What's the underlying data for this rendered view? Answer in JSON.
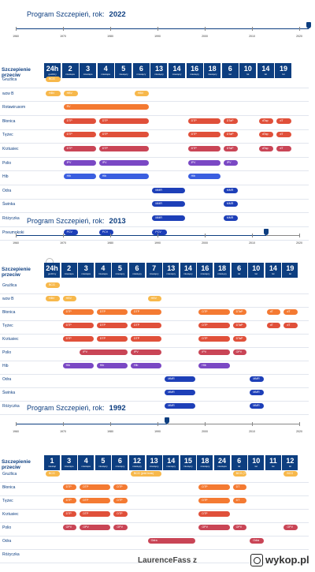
{
  "panels": [
    {
      "title": "Program Szczepień, rok:",
      "year": "2022",
      "timeline": {
        "ticks": [
          "1960",
          "1970",
          "1980",
          "1990",
          "2000",
          "2010",
          "2020"
        ],
        "marker_year": 2022
      },
      "header_title": "Szczepienie przeciw",
      "ages": [
        {
          "n": "24h",
          "u": "godziny"
        },
        {
          "n": "2",
          "u": "miesiące"
        },
        {
          "n": "3",
          "u": "miesiące"
        },
        {
          "n": "4",
          "u": "miesiące"
        },
        {
          "n": "5",
          "u": "miesięcy"
        },
        {
          "n": "6",
          "u": "miesięcy"
        },
        {
          "n": "13",
          "u": "miesięcy"
        },
        {
          "n": "14",
          "u": "miesięcy"
        },
        {
          "n": "16",
          "u": "miesięcy"
        },
        {
          "n": "18",
          "u": "miesięcy"
        },
        {
          "n": "6",
          "u": "lat"
        },
        {
          "n": "10",
          "u": "lat"
        },
        {
          "n": "14",
          "u": "lat"
        },
        {
          "n": "19",
          "u": "lat"
        }
      ],
      "rows": [
        {
          "label": "Gruźlica",
          "pills": [
            {
              "t": "BCG",
              "c": "yellow",
              "s": 0,
              "e": 1
            }
          ]
        },
        {
          "label": "wzw B",
          "pills": [
            {
              "t": "HBV",
              "c": "yellow",
              "s": 0,
              "e": 1
            },
            {
              "t": "HBV",
              "c": "yellow",
              "s": 1,
              "e": 2
            },
            {
              "t": "HBV",
              "c": "yellow",
              "s": 5,
              "e": 6
            }
          ]
        },
        {
          "label": "Rotawirusom",
          "pills": [
            {
              "t": "RV",
              "c": "orange",
              "s": 1,
              "e": 6
            }
          ]
        },
        {
          "label": "Błonica",
          "pills": [
            {
              "t": "DTP",
              "c": "red",
              "s": 1,
              "e": 3
            },
            {
              "t": "DTP",
              "c": "red",
              "s": 3,
              "e": 6
            },
            {
              "t": "DTP",
              "c": "red",
              "s": 8,
              "e": 10
            },
            {
              "t": "DTaP",
              "c": "red",
              "s": 10,
              "e": 11
            },
            {
              "t": "dTap",
              "c": "red",
              "s": 12,
              "e": 13
            },
            {
              "t": "dT",
              "c": "red",
              "s": 13,
              "e": 14
            }
          ]
        },
        {
          "label": "Tężec",
          "pills": [
            {
              "t": "DTP",
              "c": "red",
              "s": 1,
              "e": 3
            },
            {
              "t": "DTP",
              "c": "red",
              "s": 3,
              "e": 6
            },
            {
              "t": "DTP",
              "c": "red",
              "s": 8,
              "e": 10
            },
            {
              "t": "DTaP",
              "c": "red",
              "s": 10,
              "e": 11
            },
            {
              "t": "dTap",
              "c": "red",
              "s": 12,
              "e": 13
            },
            {
              "t": "dT",
              "c": "red",
              "s": 13,
              "e": 14
            }
          ]
        },
        {
          "label": "Krztusiec",
          "pills": [
            {
              "t": "DTP",
              "c": "crimson",
              "s": 1,
              "e": 3
            },
            {
              "t": "DTP",
              "c": "crimson",
              "s": 3,
              "e": 6
            },
            {
              "t": "DTP",
              "c": "crimson",
              "s": 8,
              "e": 10
            },
            {
              "t": "DTaP",
              "c": "crimson",
              "s": 10,
              "e": 11
            },
            {
              "t": "dTap",
              "c": "crimson",
              "s": 12,
              "e": 13
            },
            {
              "t": "dT",
              "c": "crimson",
              "s": 13,
              "e": 14
            }
          ]
        },
        {
          "label": "Polio",
          "pills": [
            {
              "t": "IPV",
              "c": "purple",
              "s": 1,
              "e": 3
            },
            {
              "t": "IPV",
              "c": "purple",
              "s": 3,
              "e": 6
            },
            {
              "t": "IPV",
              "c": "purple",
              "s": 8,
              "e": 10
            },
            {
              "t": "IPV",
              "c": "purple",
              "s": 10,
              "e": 11
            }
          ]
        },
        {
          "label": "Hib",
          "pills": [
            {
              "t": "Hib",
              "c": "blue",
              "s": 1,
              "e": 3
            },
            {
              "t": "Hib",
              "c": "blue",
              "s": 3,
              "e": 6
            },
            {
              "t": "Hib",
              "c": "blue",
              "s": 8,
              "e": 10
            }
          ]
        },
        {
          "label": "Odra",
          "pills": [
            {
              "t": "MMR",
              "c": "navy",
              "s": 6,
              "e": 8
            },
            {
              "t": "MMR",
              "c": "navy",
              "s": 10,
              "e": 11
            }
          ]
        },
        {
          "label": "Świnka",
          "pills": [
            {
              "t": "MMR",
              "c": "navy",
              "s": 6,
              "e": 8
            },
            {
              "t": "MMR",
              "c": "navy",
              "s": 10,
              "e": 11
            }
          ]
        },
        {
          "label": "Różyczka",
          "pills": [
            {
              "t": "MMR",
              "c": "navy",
              "s": 6,
              "e": 8
            },
            {
              "t": "MMR",
              "c": "navy",
              "s": 10,
              "e": 11
            }
          ]
        },
        {
          "label": "Pneumokoki",
          "pills": [
            {
              "t": "PCV",
              "c": "navy",
              "s": 1,
              "e": 2
            },
            {
              "t": "PCV",
              "c": "navy",
              "s": 3,
              "e": 4
            },
            {
              "t": "PCV",
              "c": "navy",
              "s": 6,
              "e": 7
            }
          ]
        }
      ]
    },
    {
      "title": "Program Szczepień, rok:",
      "year": "2013",
      "timeline": {
        "ticks": [
          "1960",
          "1970",
          "1980",
          "1990",
          "2000",
          "2010",
          "2020"
        ],
        "marker_year": 2013
      },
      "header_title": "Szczepienie przeciw",
      "ages": [
        {
          "n": "24h",
          "u": "godziny"
        },
        {
          "n": "2",
          "u": "miesiące"
        },
        {
          "n": "3",
          "u": "miesiące"
        },
        {
          "n": "4",
          "u": "miesiące"
        },
        {
          "n": "5",
          "u": "miesięcy"
        },
        {
          "n": "6",
          "u": "miesięcy"
        },
        {
          "n": "7",
          "u": "miesięcy"
        },
        {
          "n": "13",
          "u": "miesięcy"
        },
        {
          "n": "14",
          "u": "miesięcy"
        },
        {
          "n": "16",
          "u": "miesięcy"
        },
        {
          "n": "18",
          "u": "miesięcy"
        },
        {
          "n": "6",
          "u": "lat"
        },
        {
          "n": "10",
          "u": "lat"
        },
        {
          "n": "14",
          "u": "lat"
        },
        {
          "n": "19",
          "u": "lat"
        }
      ],
      "rows": [
        {
          "label": "Gruźlica",
          "pills": [
            {
              "t": "BCG",
              "c": "yellow",
              "s": 0,
              "e": 1
            }
          ]
        },
        {
          "label": "wzw B",
          "pills": [
            {
              "t": "HBV",
              "c": "yellow",
              "s": 0,
              "e": 1
            },
            {
              "t": "HBV",
              "c": "yellow",
              "s": 1,
              "e": 2
            },
            {
              "t": "HBV",
              "c": "yellow",
              "s": 6,
              "e": 7
            }
          ]
        },
        {
          "label": "Błonica",
          "pills": [
            {
              "t": "DTP",
              "c": "orange",
              "s": 1,
              "e": 3
            },
            {
              "t": "DTP",
              "c": "orange",
              "s": 3,
              "e": 5
            },
            {
              "t": "DTP",
              "c": "orange",
              "s": 5,
              "e": 7
            },
            {
              "t": "DTP",
              "c": "orange",
              "s": 9,
              "e": 11
            },
            {
              "t": "DTaP",
              "c": "orange",
              "s": 11,
              "e": 12
            },
            {
              "t": "dT",
              "c": "orange",
              "s": 13,
              "e": 14
            },
            {
              "t": "dT",
              "c": "orange",
              "s": 14,
              "e": 15
            }
          ]
        },
        {
          "label": "Tężec",
          "pills": [
            {
              "t": "DTP",
              "c": "red",
              "s": 1,
              "e": 3
            },
            {
              "t": "DTP",
              "c": "red",
              "s": 3,
              "e": 5
            },
            {
              "t": "DTP",
              "c": "red",
              "s": 5,
              "e": 7
            },
            {
              "t": "DTP",
              "c": "red",
              "s": 9,
              "e": 11
            },
            {
              "t": "DTaP",
              "c": "red",
              "s": 11,
              "e": 12
            },
            {
              "t": "dT",
              "c": "red",
              "s": 13,
              "e": 14
            },
            {
              "t": "dT",
              "c": "red",
              "s": 14,
              "e": 15
            }
          ]
        },
        {
          "label": "Krztusiec",
          "pills": [
            {
              "t": "DTP",
              "c": "red",
              "s": 1,
              "e": 3
            },
            {
              "t": "DTP",
              "c": "red",
              "s": 3,
              "e": 5
            },
            {
              "t": "DTP",
              "c": "red",
              "s": 5,
              "e": 7
            },
            {
              "t": "DTP",
              "c": "red",
              "s": 9,
              "e": 11
            },
            {
              "t": "DTaP",
              "c": "red",
              "s": 11,
              "e": 12
            }
          ]
        },
        {
          "label": "Polio",
          "pills": [
            {
              "t": "IPV",
              "c": "crimson",
              "s": 2,
              "e": 5
            },
            {
              "t": "IPV",
              "c": "crimson",
              "s": 5,
              "e": 7
            },
            {
              "t": "IPV",
              "c": "crimson",
              "s": 9,
              "e": 11
            },
            {
              "t": "OPV",
              "c": "crimson",
              "s": 11,
              "e": 12
            }
          ]
        },
        {
          "label": "Hib",
          "pills": [
            {
              "t": "Hib",
              "c": "purple",
              "s": 1,
              "e": 3
            },
            {
              "t": "Hib",
              "c": "purple",
              "s": 3,
              "e": 5
            },
            {
              "t": "Hib",
              "c": "purple",
              "s": 5,
              "e": 7
            },
            {
              "t": "Hib",
              "c": "purple",
              "s": 9,
              "e": 11
            }
          ]
        },
        {
          "label": "Odra",
          "pills": [
            {
              "t": "MMR",
              "c": "navy",
              "s": 7,
              "e": 9
            },
            {
              "t": "MMR",
              "c": "navy",
              "s": 12,
              "e": 13
            }
          ]
        },
        {
          "label": "Świnka",
          "pills": [
            {
              "t": "MMR",
              "c": "navy",
              "s": 7,
              "e": 9
            },
            {
              "t": "MMR",
              "c": "navy",
              "s": 12,
              "e": 13
            }
          ]
        },
        {
          "label": "Różyczka",
          "pills": [
            {
              "t": "MMR",
              "c": "navy",
              "s": 7,
              "e": 9
            },
            {
              "t": "MMR",
              "c": "navy",
              "s": 12,
              "e": 13
            }
          ]
        }
      ]
    },
    {
      "title": "Program Szczepień, rok:",
      "year": "1992",
      "timeline": {
        "ticks": [
          "1960",
          "1970",
          "1980",
          "1990",
          "2000",
          "2010",
          "2020"
        ],
        "marker_year": 1992
      },
      "header_title": "Szczepienie przeciw",
      "ages": [
        {
          "n": "1",
          "u": "miesiąc"
        },
        {
          "n": "3",
          "u": "miesiące"
        },
        {
          "n": "4",
          "u": "miesiące"
        },
        {
          "n": "5",
          "u": "miesięcy"
        },
        {
          "n": "6",
          "u": "miesięcy"
        },
        {
          "n": "12",
          "u": "miesięcy"
        },
        {
          "n": "13",
          "u": "miesięcy"
        },
        {
          "n": "14",
          "u": "miesięcy"
        },
        {
          "n": "15",
          "u": "miesięcy"
        },
        {
          "n": "18",
          "u": "miesięcy"
        },
        {
          "n": "24",
          "u": "miesiące"
        },
        {
          "n": "6",
          "u": "lat"
        },
        {
          "n": "10",
          "u": "lat"
        },
        {
          "n": "11",
          "u": "lat"
        },
        {
          "n": "12",
          "u": "lat"
        }
      ],
      "rows": [
        {
          "label": "Gruźlica",
          "pills": [
            {
              "t": "BCG",
              "c": "yellow",
              "s": 0,
              "e": 1
            },
            {
              "t": "BCG (jeśli brak)",
              "c": "yellow",
              "s": 5,
              "e": 7
            },
            {
              "t": "BCG (+PPD)",
              "c": "yellow",
              "s": 11,
              "e": 12
            },
            {
              "t": "BCG",
              "c": "yellow",
              "s": 14,
              "e": 15
            }
          ]
        },
        {
          "label": "Błonica",
          "pills": [
            {
              "t": "DTP",
              "c": "orange",
              "s": 1,
              "e": 2
            },
            {
              "t": "DTP",
              "c": "orange",
              "s": 2,
              "e": 4
            },
            {
              "t": "DTP",
              "c": "orange",
              "s": 4,
              "e": 5
            },
            {
              "t": "DTP",
              "c": "orange",
              "s": 9,
              "e": 11
            },
            {
              "t": "DT",
              "c": "orange",
              "s": 11,
              "e": 12
            }
          ]
        },
        {
          "label": "Tężec",
          "pills": [
            {
              "t": "DTP",
              "c": "orange",
              "s": 1,
              "e": 2
            },
            {
              "t": "DTP",
              "c": "orange",
              "s": 2,
              "e": 4
            },
            {
              "t": "DTP",
              "c": "orange",
              "s": 4,
              "e": 5
            },
            {
              "t": "DTP",
              "c": "orange",
              "s": 9,
              "e": 11
            },
            {
              "t": "DT",
              "c": "orange",
              "s": 11,
              "e": 12
            }
          ]
        },
        {
          "label": "Krztusiec",
          "pills": [
            {
              "t": "DTP",
              "c": "red",
              "s": 1,
              "e": 2
            },
            {
              "t": "DTP",
              "c": "red",
              "s": 2,
              "e": 4
            },
            {
              "t": "DTP",
              "c": "red",
              "s": 4,
              "e": 5
            },
            {
              "t": "DTP",
              "c": "red",
              "s": 9,
              "e": 11
            }
          ]
        },
        {
          "label": "Polio",
          "pills": [
            {
              "t": "OPV",
              "c": "crimson",
              "s": 1,
              "e": 2
            },
            {
              "t": "OPV",
              "c": "crimson",
              "s": 2,
              "e": 4
            },
            {
              "t": "OPV",
              "c": "crimson",
              "s": 4,
              "e": 5
            },
            {
              "t": "OPV",
              "c": "crimson",
              "s": 9,
              "e": 11
            },
            {
              "t": "OPV",
              "c": "crimson",
              "s": 11,
              "e": 12
            },
            {
              "t": "OPV",
              "c": "crimson",
              "s": 14,
              "e": 15
            }
          ]
        },
        {
          "label": "Odra",
          "pills": [
            {
              "t": "Odra",
              "c": "crimson",
              "s": 6,
              "e": 9
            },
            {
              "t": "Odra",
              "c": "crimson",
              "s": 12,
              "e": 13
            }
          ]
        },
        {
          "label": "Różyczka",
          "pills": []
        }
      ]
    }
  ],
  "watermark": {
    "user": "LaurenceFass",
    "suffix": "z",
    "site": "wykop.pl"
  }
}
